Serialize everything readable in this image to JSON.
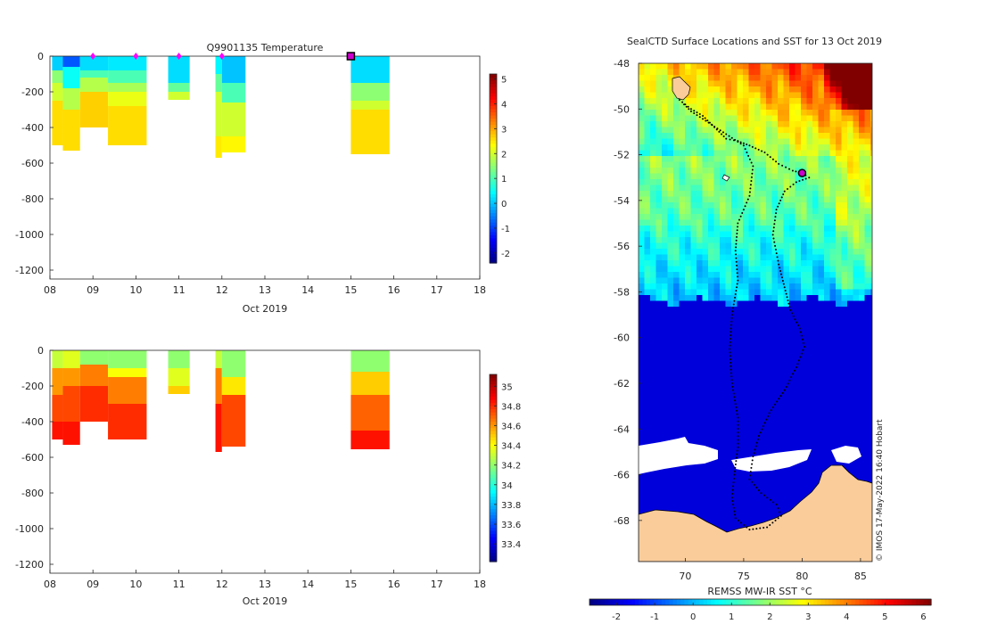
{
  "colors": {
    "background": "#ffffff",
    "axis": "#262626",
    "land": "#f9cc9a",
    "ice": "#ffffff",
    "track": "#000000",
    "marker": "#ff00ff",
    "current_position": "#cc00cc"
  },
  "chart_data": [
    {
      "id": "temperature-section",
      "type": "heatmap",
      "title": "Q9901135  Temperature",
      "xlabel": "Oct 2019",
      "ylabel": "",
      "xlim": [
        8,
        18
      ],
      "ylim": [
        -1250,
        0
      ],
      "xticks": [
        8,
        9,
        10,
        11,
        12,
        13,
        14,
        15,
        16,
        17,
        18
      ],
      "xticklabels": [
        "08",
        "09",
        "10",
        "11",
        "12",
        "13",
        "14",
        "15",
        "16",
        "17",
        "18"
      ],
      "yticks": [
        0,
        -200,
        -400,
        -600,
        -800,
        -1000,
        -1200
      ],
      "colorbar": {
        "min": -2.4,
        "max": 5.2,
        "ticks": [
          5,
          4,
          3,
          2,
          1,
          0,
          -1,
          -2
        ],
        "colormap": "jet"
      },
      "profile_markers_day": [
        9,
        10,
        11,
        12
      ],
      "current_profile_day": 15,
      "profiles": [
        {
          "x0": 8.05,
          "x1": 8.3,
          "max_depth": 500,
          "layers": [
            [
              0,
              80,
              0.1
            ],
            [
              80,
              150,
              1.5
            ],
            [
              150,
              250,
              2.0
            ],
            [
              250,
              500,
              2.6
            ]
          ]
        },
        {
          "x0": 8.3,
          "x1": 8.7,
          "max_depth": 530,
          "layers": [
            [
              0,
              60,
              -0.8
            ],
            [
              60,
              180,
              0.5
            ],
            [
              180,
              300,
              1.8
            ],
            [
              300,
              530,
              2.6
            ]
          ]
        },
        {
          "x0": 8.7,
          "x1": 9.35,
          "max_depth": 400,
          "layers": [
            [
              0,
              80,
              0.2
            ],
            [
              80,
              120,
              1.0
            ],
            [
              120,
              200,
              1.8
            ],
            [
              200,
              400,
              2.7
            ]
          ]
        },
        {
          "x0": 9.35,
          "x1": 10.25,
          "max_depth": 500,
          "layers": [
            [
              0,
              80,
              0.3
            ],
            [
              80,
              150,
              1.0
            ],
            [
              150,
              200,
              1.7
            ],
            [
              200,
              280,
              2.2
            ],
            [
              280,
              500,
              2.6
            ]
          ]
        },
        {
          "x0": 10.75,
          "x1": 11.25,
          "max_depth": 245,
          "layers": [
            [
              0,
              150,
              0.2
            ],
            [
              150,
              200,
              1.2
            ],
            [
              200,
              245,
              2.0
            ]
          ]
        },
        {
          "x0": 11.85,
          "x1": 12.0,
          "max_depth": 570,
          "layers": [
            [
              0,
              100,
              0.4
            ],
            [
              100,
              200,
              1.2
            ],
            [
              200,
              450,
              2.0
            ],
            [
              450,
              570,
              2.5
            ]
          ]
        },
        {
          "x0": 12.0,
          "x1": 12.55,
          "max_depth": 540,
          "layers": [
            [
              0,
              150,
              0.0
            ],
            [
              150,
              260,
              1.0
            ],
            [
              260,
              450,
              2.0
            ],
            [
              450,
              540,
              2.4
            ]
          ]
        },
        {
          "x0": 15.0,
          "x1": 15.9,
          "max_depth": 555,
          "layers": [
            [
              0,
              150,
              0.2
            ],
            [
              150,
              250,
              1.5
            ],
            [
              250,
              300,
              2.0
            ],
            [
              300,
              550,
              2.6
            ]
          ]
        }
      ]
    },
    {
      "id": "salinity-section",
      "type": "heatmap",
      "title": "",
      "xlabel": "Oct 2019",
      "ylabel": "",
      "xlim": [
        8,
        18
      ],
      "ylim": [
        -1250,
        0
      ],
      "xticks": [
        8,
        9,
        10,
        11,
        12,
        13,
        14,
        15,
        16,
        17,
        18
      ],
      "xticklabels": [
        "08",
        "09",
        "10",
        "11",
        "12",
        "13",
        "14",
        "15",
        "16",
        "17",
        "18"
      ],
      "yticks": [
        0,
        -200,
        -400,
        -600,
        -800,
        -1000,
        -1200
      ],
      "colorbar": {
        "min": 33.22,
        "max": 35.12,
        "ticks": [
          35,
          34.8,
          34.6,
          34.4,
          34.2,
          34,
          33.8,
          33.6,
          33.4
        ],
        "colormap": "jet"
      },
      "profiles": [
        {
          "x0": 8.05,
          "x1": 8.3,
          "max_depth": 500,
          "layers": [
            [
              0,
              100,
              34.3
            ],
            [
              100,
              250,
              34.6
            ],
            [
              250,
              400,
              34.75
            ],
            [
              400,
              500,
              34.85
            ]
          ]
        },
        {
          "x0": 8.3,
          "x1": 8.7,
          "max_depth": 530,
          "layers": [
            [
              0,
              100,
              34.35
            ],
            [
              100,
              200,
              34.6
            ],
            [
              200,
              400,
              34.75
            ],
            [
              400,
              530,
              34.85
            ]
          ]
        },
        {
          "x0": 8.7,
          "x1": 9.35,
          "max_depth": 400,
          "layers": [
            [
              0,
              80,
              34.2
            ],
            [
              80,
              200,
              34.65
            ],
            [
              200,
              400,
              34.8
            ]
          ]
        },
        {
          "x0": 9.35,
          "x1": 10.25,
          "max_depth": 500,
          "layers": [
            [
              0,
              100,
              34.2
            ],
            [
              100,
              150,
              34.4
            ],
            [
              150,
              300,
              34.65
            ],
            [
              300,
              500,
              34.8
            ]
          ]
        },
        {
          "x0": 10.75,
          "x1": 11.25,
          "max_depth": 245,
          "layers": [
            [
              0,
              100,
              34.2
            ],
            [
              100,
              200,
              34.35
            ],
            [
              200,
              245,
              34.5
            ]
          ]
        },
        {
          "x0": 11.85,
          "x1": 12.0,
          "max_depth": 570,
          "layers": [
            [
              0,
              100,
              34.3
            ],
            [
              100,
              300,
              34.65
            ],
            [
              300,
              570,
              34.85
            ]
          ]
        },
        {
          "x0": 12.0,
          "x1": 12.55,
          "max_depth": 540,
          "layers": [
            [
              0,
              150,
              34.2
            ],
            [
              150,
              250,
              34.45
            ],
            [
              250,
              540,
              34.75
            ]
          ]
        },
        {
          "x0": 15.0,
          "x1": 15.9,
          "max_depth": 555,
          "layers": [
            [
              0,
              120,
              34.2
            ],
            [
              120,
              250,
              34.5
            ],
            [
              250,
              450,
              34.7
            ],
            [
              450,
              555,
              34.85
            ]
          ]
        }
      ]
    },
    {
      "id": "sst-map",
      "type": "heatmap",
      "title": "SealCTD Surface Locations and SST for 13 Oct 2019",
      "xlabel": "",
      "ylabel": "",
      "xlim": [
        66,
        86
      ],
      "ylim": [
        -69.8,
        -48
      ],
      "xticks": [
        70,
        75,
        80,
        85
      ],
      "yticks": [
        -48,
        -50,
        -52,
        -54,
        -56,
        -58,
        -60,
        -62,
        -64,
        -66,
        -68
      ],
      "colorbar": {
        "label": "REMSS MW-IR SST °C",
        "min": -2.7,
        "max": 6.2,
        "ticks": [
          -2,
          -1,
          0,
          1,
          2,
          3,
          4,
          5,
          6
        ],
        "colormap": "jet"
      },
      "current_position": {
        "lon": 80,
        "lat": -52.8
      },
      "track": [
        [
          69.5,
          -49.6
        ],
        [
          70.5,
          -50.0
        ],
        [
          71.5,
          -50.3
        ],
        [
          72.5,
          -50.8
        ],
        [
          73.5,
          -51.3
        ],
        [
          74.5,
          -51.4
        ],
        [
          75.5,
          -51.6
        ],
        [
          76.8,
          -51.9
        ],
        [
          78.0,
          -52.4
        ],
        [
          79.2,
          -52.7
        ],
        [
          80.0,
          -52.8
        ],
        [
          80.6,
          -53.0
        ],
        [
          79.5,
          -53.2
        ],
        [
          78.5,
          -53.6
        ],
        [
          77.8,
          -54.4
        ],
        [
          77.5,
          -55.5
        ],
        [
          78.0,
          -56.8
        ],
        [
          78.5,
          -57.8
        ],
        [
          79.0,
          -58.8
        ],
        [
          79.8,
          -59.6
        ],
        [
          80.2,
          -60.4
        ],
        [
          79.5,
          -61.3
        ],
        [
          78.5,
          -62.3
        ],
        [
          77.2,
          -63.3
        ],
        [
          76.3,
          -64.3
        ],
        [
          75.8,
          -65.2
        ],
        [
          75.5,
          -66.2
        ],
        [
          76.5,
          -66.8
        ],
        [
          77.8,
          -67.3
        ],
        [
          78.2,
          -67.8
        ],
        [
          77.0,
          -68.3
        ],
        [
          75.5,
          -68.4
        ],
        [
          74.3,
          -67.9
        ],
        [
          74.0,
          -67.0
        ],
        [
          74.2,
          -66.0
        ],
        [
          74.5,
          -64.8
        ],
        [
          74.5,
          -63.5
        ],
        [
          74.0,
          -62.0
        ],
        [
          73.8,
          -60.5
        ],
        [
          74.0,
          -59.0
        ],
        [
          74.5,
          -57.5
        ],
        [
          74.3,
          -56.2
        ],
        [
          74.5,
          -55.0
        ],
        [
          75.5,
          -53.8
        ],
        [
          75.8,
          -52.5
        ],
        [
          75.0,
          -51.6
        ],
        [
          73.5,
          -51.1
        ],
        [
          72.0,
          -50.6
        ],
        [
          70.5,
          -50.1
        ],
        [
          69.7,
          -49.7
        ]
      ],
      "credit": "© IMOS 17-May-2022 16:40 Hobart"
    }
  ]
}
